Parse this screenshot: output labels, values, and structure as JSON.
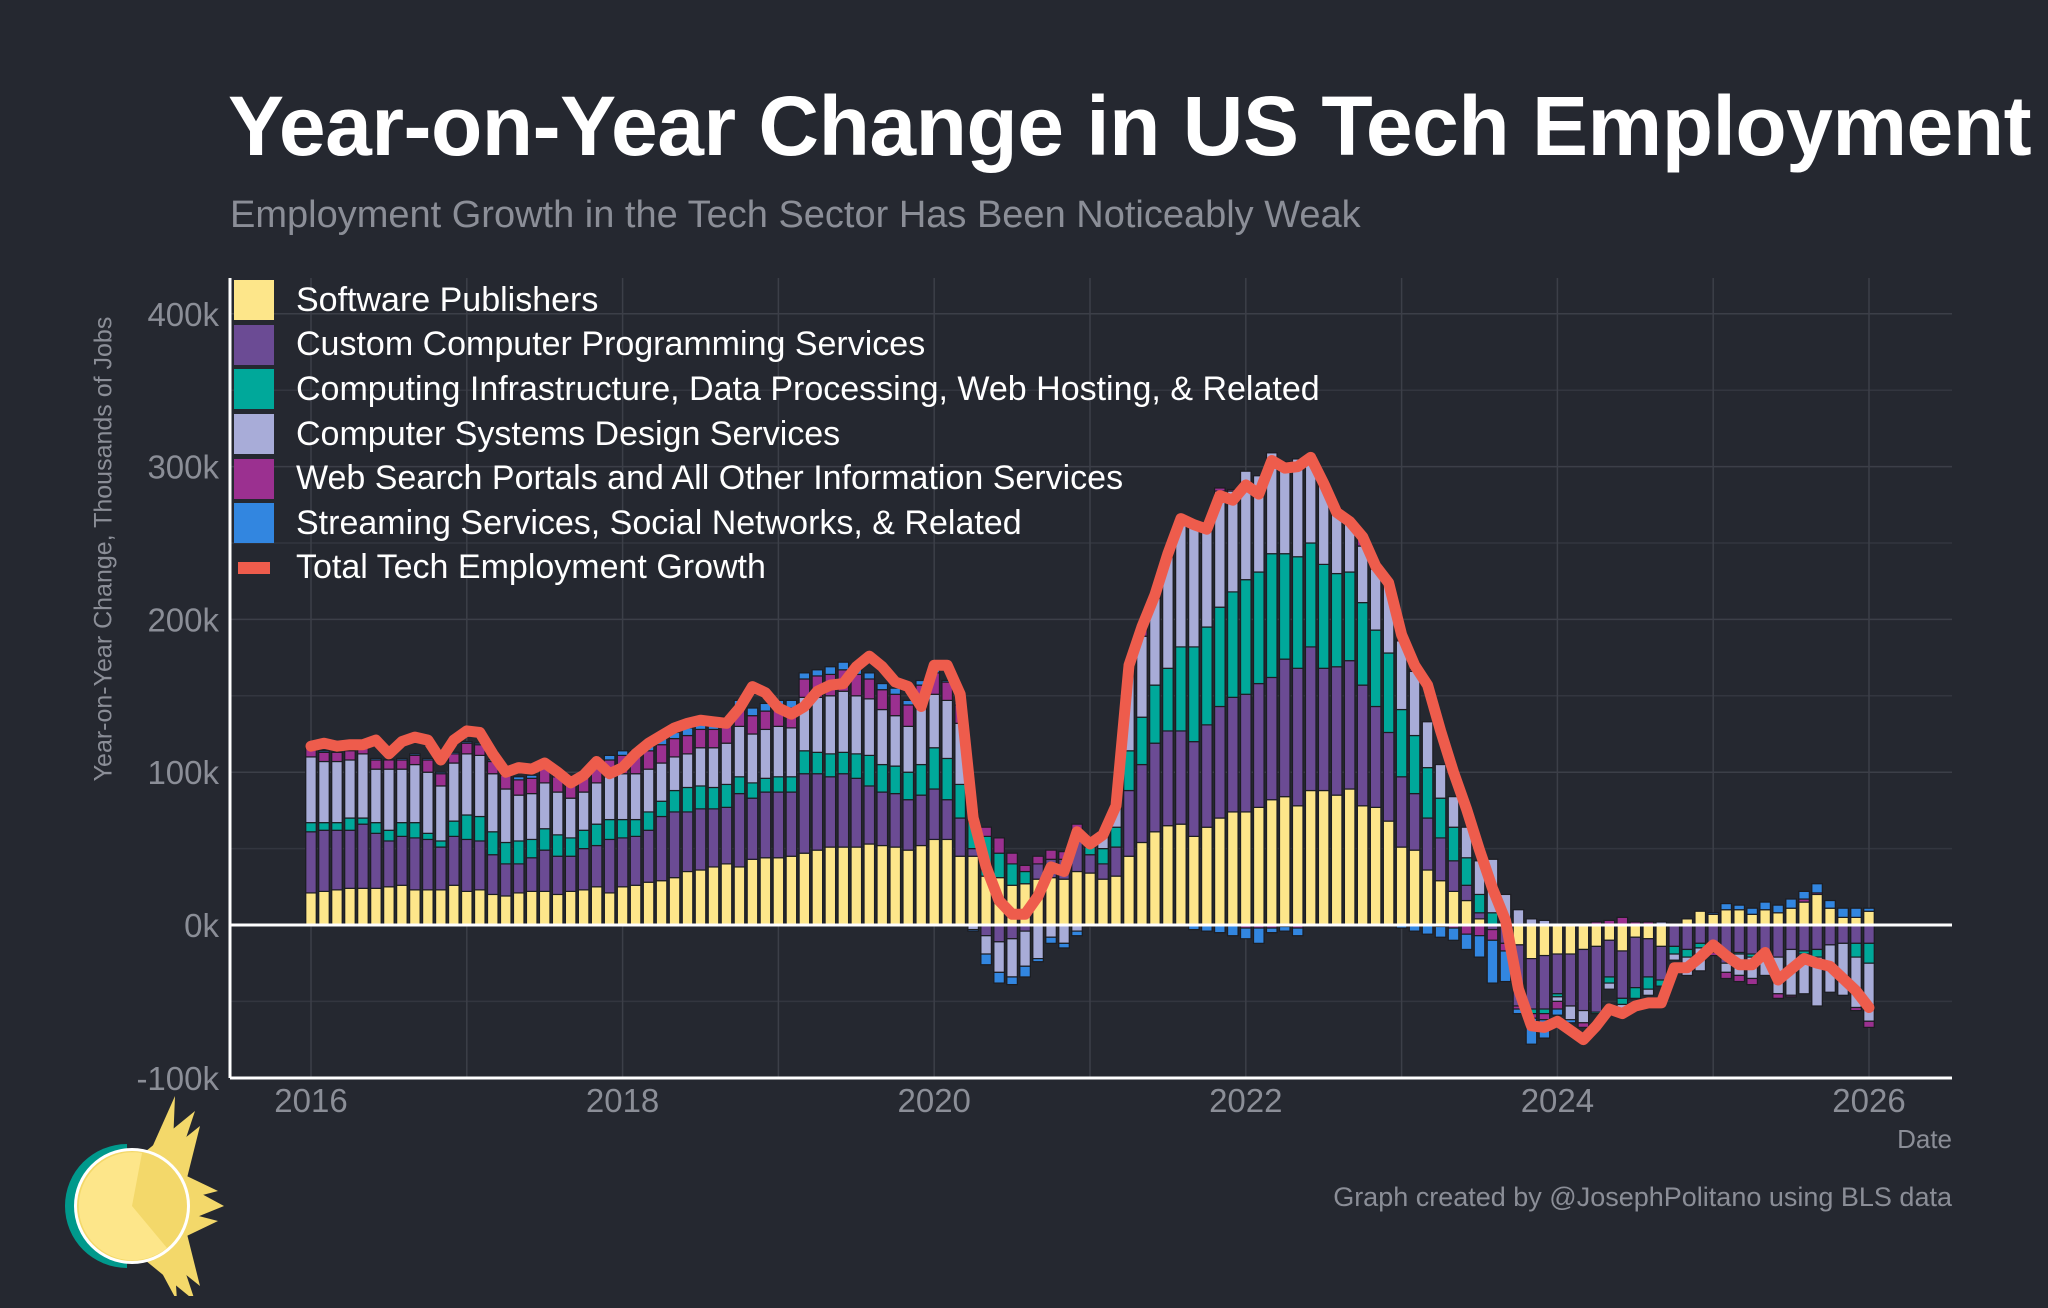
{
  "colors": {
    "background": "#252830",
    "software": "#fde68a",
    "custom": "#6b4b94",
    "infra": "#00a89a",
    "csd": "#a8acd8",
    "web": "#9b3090",
    "streaming": "#3286e0",
    "total": "#ee5c4c"
  },
  "chart_data": {
    "type": "bar",
    "stacked": true,
    "title": "Year-on-Year Change in US Tech Employment",
    "subtitle": "Employment Growth in the Tech Sector Has Been Noticeably Weak",
    "xlabel": "Date",
    "ylabel": "Year-on-Year Change, Thousands of Jobs",
    "credit": "Graph created by @JosephPolitano using BLS data",
    "ylim": [
      -100,
      420
    ],
    "y_ticks": [
      -100,
      0,
      100,
      200,
      300,
      400
    ],
    "y_tick_labels": [
      "-100k",
      "0k",
      "100k",
      "200k",
      "300k",
      "400k"
    ],
    "x_ticks": [
      "2016",
      "2018",
      "2020",
      "2022",
      "2024",
      "2026"
    ],
    "xlim": [
      "2015-07",
      "2026-08"
    ],
    "grid": true,
    "legend": "top-left",
    "x": [
      "2016-01",
      "2016-02",
      "2016-03",
      "2016-04",
      "2016-05",
      "2016-06",
      "2016-07",
      "2016-08",
      "2016-09",
      "2016-10",
      "2016-11",
      "2016-12",
      "2017-01",
      "2017-02",
      "2017-03",
      "2017-04",
      "2017-05",
      "2017-06",
      "2017-07",
      "2017-08",
      "2017-09",
      "2017-10",
      "2017-11",
      "2017-12",
      "2018-01",
      "2018-02",
      "2018-03",
      "2018-04",
      "2018-05",
      "2018-06",
      "2018-07",
      "2018-08",
      "2018-09",
      "2018-10",
      "2018-11",
      "2018-12",
      "2019-01",
      "2019-02",
      "2019-03",
      "2019-04",
      "2019-05",
      "2019-06",
      "2019-07",
      "2019-08",
      "2019-09",
      "2019-10",
      "2019-11",
      "2019-12",
      "2020-01",
      "2020-02",
      "2020-03",
      "2020-04",
      "2020-05",
      "2020-06",
      "2020-07",
      "2020-08",
      "2020-09",
      "2020-10",
      "2020-11",
      "2020-12",
      "2021-01",
      "2021-02",
      "2021-03",
      "2021-04",
      "2021-05",
      "2021-06",
      "2021-07",
      "2021-08",
      "2021-09",
      "2021-10",
      "2021-11",
      "2021-12",
      "2022-01",
      "2022-02",
      "2022-03",
      "2022-04",
      "2022-05",
      "2022-06",
      "2022-07",
      "2022-08",
      "2022-09",
      "2022-10",
      "2022-11",
      "2022-12",
      "2023-01",
      "2023-02",
      "2023-03",
      "2023-04",
      "2023-05",
      "2023-06",
      "2023-07",
      "2023-08",
      "2023-09",
      "2023-10",
      "2023-11",
      "2023-12",
      "2024-01",
      "2024-02",
      "2024-03",
      "2024-04",
      "2024-05",
      "2024-06",
      "2024-07",
      "2024-08",
      "2024-09",
      "2024-10",
      "2024-11",
      "2024-12",
      "2025-01",
      "2025-02",
      "2025-03",
      "2025-04",
      "2025-05",
      "2025-06",
      "2025-07",
      "2025-08",
      "2025-09",
      "2025-10",
      "2025-11",
      "2025-12",
      "2026-01"
    ],
    "series": [
      {
        "name": "Software Publishers",
        "key": "software",
        "values": [
          21,
          22,
          23,
          24,
          24,
          24,
          25,
          26,
          23,
          23,
          23,
          26,
          22,
          23,
          20,
          19,
          21,
          22,
          22,
          20,
          22,
          23,
          25,
          21,
          25,
          26,
          28,
          29,
          31,
          35,
          36,
          38,
          40,
          38,
          43,
          44,
          44,
          45,
          47,
          49,
          51,
          51,
          51,
          53,
          52,
          51,
          49,
          52,
          56,
          56,
          45,
          45,
          32,
          31,
          26,
          27,
          30,
          31,
          30,
          35,
          34,
          30,
          32,
          45,
          54,
          61,
          65,
          66,
          58,
          64,
          70,
          74,
          74,
          77,
          82,
          84,
          78,
          88,
          88,
          85,
          89,
          78,
          77,
          68,
          51,
          49,
          36,
          29,
          22,
          16,
          4,
          0,
          0,
          -13,
          -22,
          -20,
          -19,
          -19,
          -16,
          -14,
          -10,
          -17,
          -8,
          -9,
          -14,
          0,
          4,
          9,
          7,
          10,
          10,
          7,
          10,
          8,
          11,
          15,
          20,
          11,
          5,
          5,
          9
        ]
      },
      {
        "name": "Custom Computer Programming Services",
        "key": "custom",
        "values": [
          40,
          40,
          39,
          38,
          42,
          36,
          30,
          32,
          34,
          33,
          28,
          32,
          34,
          32,
          26,
          21,
          19,
          22,
          27,
          25,
          23,
          27,
          27,
          35,
          32,
          32,
          34,
          42,
          43,
          39,
          40,
          38,
          37,
          48,
          40,
          43,
          43,
          42,
          52,
          50,
          46,
          48,
          45,
          38,
          35,
          35,
          33,
          33,
          33,
          26,
          25,
          5,
          -7,
          -11,
          -9,
          -4,
          10,
          12,
          13,
          24,
          12,
          10,
          19,
          43,
          51,
          58,
          62,
          61,
          62,
          67,
          73,
          75,
          77,
          81,
          80,
          90,
          90,
          94,
          80,
          84,
          84,
          79,
          66,
          58,
          46,
          37,
          34,
          28,
          20,
          10,
          4,
          -3,
          -12,
          -40,
          -33,
          -35,
          -26,
          -34,
          -40,
          -43,
          -24,
          -31,
          -33,
          -25,
          -22,
          -14,
          -16,
          -12,
          -18,
          -25,
          -18,
          -19,
          -20,
          -21,
          -16,
          -17,
          -16,
          -13,
          -12,
          -12,
          -12
        ]
      },
      {
        "name": "Computing Infrastructure, Data Processing, Web Hosting, & Related",
        "key": "infra",
        "values": [
          6,
          5,
          5,
          8,
          4,
          7,
          7,
          9,
          10,
          4,
          4,
          10,
          16,
          16,
          15,
          14,
          15,
          12,
          14,
          14,
          12,
          12,
          14,
          13,
          12,
          11,
          12,
          10,
          14,
          16,
          15,
          14,
          15,
          11,
          10,
          9,
          10,
          10,
          15,
          14,
          15,
          14,
          16,
          20,
          18,
          18,
          18,
          20,
          27,
          27,
          22,
          18,
          26,
          16,
          14,
          8,
          0,
          0,
          0,
          0,
          5,
          10,
          13,
          26,
          31,
          38,
          41,
          55,
          62,
          64,
          65,
          69,
          75,
          73,
          81,
          69,
          73,
          68,
          68,
          61,
          58,
          54,
          50,
          52,
          44,
          38,
          33,
          26,
          22,
          18,
          12,
          8,
          2,
          0,
          -3,
          -3,
          -2,
          0,
          0,
          -1,
          -4,
          -4,
          -7,
          -8,
          -4,
          -5,
          -5,
          -3,
          0,
          0,
          -1,
          -2,
          0,
          0,
          0,
          -2,
          -5,
          0,
          0,
          -9,
          -13
        ]
      },
      {
        "name": "Computer Systems Design Services",
        "key": "csd",
        "values": [
          43,
          40,
          40,
          38,
          42,
          35,
          40,
          35,
          38,
          40,
          36,
          38,
          40,
          40,
          38,
          35,
          30,
          30,
          30,
          28,
          26,
          25,
          27,
          28,
          30,
          30,
          28,
          25,
          22,
          22,
          25,
          26,
          27,
          33,
          32,
          32,
          33,
          32,
          35,
          36,
          38,
          40,
          38,
          37,
          36,
          33,
          30,
          38,
          35,
          38,
          40,
          -3,
          -12,
          -20,
          -25,
          -23,
          -22,
          -8,
          -12,
          -4,
          2,
          9,
          14,
          55,
          53,
          57,
          73,
          80,
          80,
          66,
          76,
          66,
          71,
          63,
          66,
          60,
          64,
          57,
          54,
          41,
          33,
          37,
          40,
          45,
          45,
          42,
          30,
          22,
          20,
          20,
          22,
          35,
          18,
          10,
          4,
          3,
          -3,
          -9,
          -8,
          0,
          -4,
          -5,
          0,
          -4,
          2,
          -4,
          -12,
          -15,
          0,
          -6,
          -14,
          -14,
          -13,
          -24,
          -30,
          -26,
          -32,
          -31,
          -34,
          -33,
          -38
        ]
      },
      {
        "name": "Web Search Portals and All Other Information Services",
        "key": "web",
        "values": [
          6,
          6,
          6,
          6,
          5,
          6,
          6,
          6,
          6,
          8,
          8,
          6,
          7,
          7,
          8,
          9,
          10,
          10,
          10,
          10,
          10,
          10,
          11,
          11,
          12,
          12,
          12,
          12,
          12,
          12,
          12,
          12,
          12,
          12,
          12,
          12,
          12,
          13,
          12,
          14,
          14,
          14,
          14,
          13,
          13,
          14,
          14,
          14,
          14,
          12,
          12,
          6,
          6,
          10,
          7,
          4,
          5,
          6,
          5,
          7,
          1,
          1,
          1,
          1,
          6,
          2,
          2,
          4,
          2,
          2,
          2,
          1,
          -2,
          -2,
          -2,
          -1,
          -2,
          0,
          0,
          0,
          0,
          6,
          3,
          1,
          1,
          1,
          0,
          -1,
          -2,
          -6,
          -7,
          -7,
          -5,
          -2,
          -3,
          -4,
          -5,
          0,
          -3,
          2,
          3,
          5,
          2,
          2,
          0,
          0,
          0,
          0,
          -2,
          -4,
          -4,
          -4,
          0,
          -3,
          -1,
          2,
          1,
          0,
          0,
          -2,
          -4
        ]
      },
      {
        "name": "Streaming Services, Social Networks, & Related",
        "key": "streaming",
        "values": [
          1,
          1,
          0,
          0,
          1,
          1,
          0,
          1,
          1,
          1,
          1,
          1,
          1,
          1,
          1,
          2,
          2,
          2,
          2,
          2,
          3,
          2,
          3,
          3,
          3,
          3,
          4,
          4,
          4,
          5,
          5,
          5,
          5,
          5,
          5,
          5,
          5,
          5,
          4,
          4,
          5,
          5,
          5,
          4,
          4,
          4,
          3,
          3,
          2,
          1,
          2,
          -1,
          -7,
          -7,
          -5,
          -7,
          -2,
          -4,
          -3,
          -3,
          -1,
          -1,
          -1,
          0,
          0,
          0,
          0,
          0,
          -3,
          -4,
          -5,
          -7,
          -7,
          -10,
          -3,
          -3,
          -5,
          -1,
          -1,
          -1,
          0,
          0,
          -1,
          0,
          -2,
          -4,
          -6,
          -7,
          -8,
          -10,
          -14,
          -28,
          -20,
          -3,
          -17,
          -12,
          -4,
          -2,
          0,
          0,
          0,
          0,
          0,
          0,
          0,
          1,
          0,
          0,
          1,
          4,
          3,
          4,
          5,
          5,
          6,
          5,
          6,
          5,
          6,
          6,
          2
        ]
      }
    ],
    "line": {
      "name": "Total Tech Employment Growth",
      "key": "total",
      "values": [
        117,
        119,
        117,
        118,
        118,
        121,
        112,
        120,
        123,
        121,
        108,
        121,
        127,
        126,
        112,
        100,
        103,
        102,
        106,
        100,
        93,
        98,
        107,
        99,
        103,
        112,
        119,
        124,
        129,
        132,
        134,
        133,
        132,
        142,
        156,
        152,
        142,
        138,
        143,
        153,
        157,
        158,
        169,
        176,
        169,
        159,
        156,
        143,
        170,
        170,
        151,
        70,
        38,
        16,
        7,
        7,
        19,
        38,
        35,
        61,
        53,
        59,
        78,
        170,
        195,
        216,
        243,
        266,
        262,
        259,
        281,
        278,
        288,
        282,
        304,
        299,
        300,
        306,
        289,
        270,
        264,
        254,
        235,
        224,
        190,
        170,
        157,
        127,
        100,
        76,
        49,
        24,
        3,
        -42,
        -66,
        -67,
        -63,
        -69,
        -75,
        -66,
        -55,
        -58,
        -53,
        -51,
        -51,
        -28,
        -28,
        -21,
        -13,
        -20,
        -26,
        -26,
        -18,
        -36,
        -29,
        -22,
        -25,
        -27,
        -35,
        -43,
        -54
      ]
    }
  }
}
